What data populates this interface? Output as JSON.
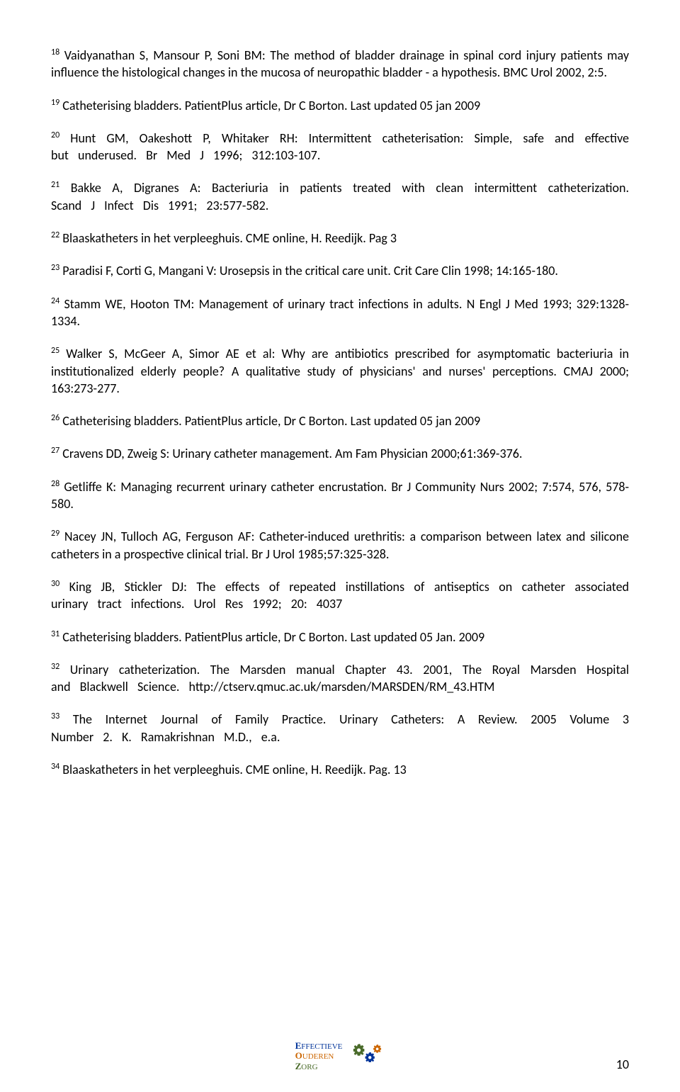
{
  "references": [
    {
      "num": "18",
      "text": "Vaidyanathan S, Mansour P, Soni BM: The method of bladder drainage in spinal cord injury patients may influence the histological changes in the mucosa of neuropathic bladder - a hypothesis. BMC Urol 2002, 2:5.",
      "wide": false
    },
    {
      "num": "19",
      "text": "Catheterising bladders. PatientPlus article, Dr C Borton. Last updated 05 jan 2009",
      "wide": false
    },
    {
      "num": "20",
      "text": "Hunt GM, Oakeshott P, Whitaker RH: Intermittent catheterisation: Simple, safe and effective but underused. Br Med J 1996; 312:103-107.",
      "wide": true
    },
    {
      "num": "21",
      "text": "Bakke A, Digranes A: Bacteriuria in patients treated with clean intermittent catheterization. Scand J Infect Dis 1991; 23:577-582.",
      "wide": true
    },
    {
      "num": "22",
      "text": "Blaaskatheters in het verpleeghuis. CME online, H. Reedijk. Pag 3",
      "wide": false
    },
    {
      "num": "23",
      "text": "Paradisi F, Corti G, Mangani V: Urosepsis in the critical care unit. Crit Care Clin 1998; 14:165-180.",
      "wide": false
    },
    {
      "num": "24",
      "text": "Stamm WE, Hooton TM: Management of urinary tract infections in adults. N Engl J Med 1993; 329:1328-1334.",
      "wide": false
    },
    {
      "num": "25",
      "text": "Walker S, McGeer A, Simor AE et al: Why are antibiotics prescribed for asymptomatic bacteriuria in institutionalized elderly people? A qualitative study of physicians' and nurses' perceptions. CMAJ 2000; 163:273-277.",
      "wide": false
    },
    {
      "num": "26",
      "text": "Catheterising bladders. PatientPlus article, Dr C Borton. Last updated 05 jan 2009",
      "wide": false
    },
    {
      "num": "27",
      "text": "Cravens DD, Zweig S: Urinary catheter management. Am Fam Physician 2000;61:369-376.",
      "wide": false
    },
    {
      "num": "28",
      "text": "Getliffe K: Managing recurrent urinary catheter encrustation. Br J Community Nurs 2002; 7:574, 576, 578-580.",
      "wide": false
    },
    {
      "num": "29",
      "text": "Nacey JN, Tulloch AG, Ferguson AF: Catheter-induced urethritis: a comparison between latex and silicone catheters in a prospective clinical trial. Br J Urol 1985;57:325-328.",
      "wide": false
    },
    {
      "num": "30",
      "text": "King JB, Stickler DJ: The effects of repeated instillations of antiseptics on catheter associated urinary tract infections. Urol Res 1992; 20: 4037",
      "wide": true
    },
    {
      "num": "31",
      "text": "Catheterising bladders. PatientPlus article, Dr C Borton. Last updated 05 Jan. 2009",
      "wide": false
    },
    {
      "num": "32",
      "text": "Urinary catheterization. The Marsden manual Chapter 43. 2001, The Royal Marsden Hospital and Blackwell Science. http://ctserv.qmuc.ac.uk/marsden/MARSDEN/RM_43.HTM",
      "wide": true
    },
    {
      "num": "33",
      "text": "The Internet Journal of Family Practice. Urinary Catheters: A Review. 2005 Volume 3 Number 2. K. Ramakrishnan M.D., e.a.",
      "wide": true
    },
    {
      "num": "34",
      "text": "Blaaskatheters in het verpleeghuis. CME online, H. Reedijk. Pag. 13",
      "wide": false
    }
  ],
  "logo": {
    "line1_letter": "E",
    "line1_rest": "FFECTIEVE",
    "line2_letter": "O",
    "line2_rest": "UDEREN",
    "line3_letter": "Z",
    "line3_rest": "ORG",
    "gear_color_1": "#4a6b2a",
    "gear_color_2": "#003399",
    "gear_color_3": "#cc6600"
  },
  "page_number": "10",
  "style": {
    "body_font_size": 18,
    "body_color": "#000000",
    "background": "#ffffff",
    "sup_font_size": 12
  }
}
